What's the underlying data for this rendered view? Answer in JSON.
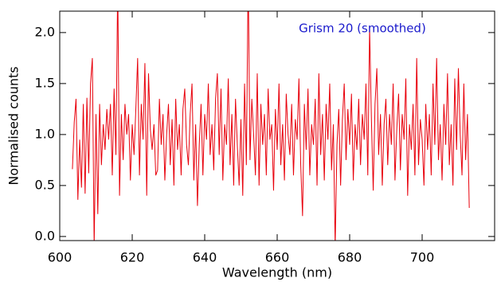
{
  "chart_data": {
    "type": "line",
    "annotation": "Grism 20 (smoothed)",
    "x_label": "Wavelength (nm)",
    "y_label": "Normalised counts",
    "xlim": [
      600,
      720
    ],
    "ylim": [
      -0.04,
      2.21
    ],
    "xticks": [
      600,
      620,
      640,
      660,
      680,
      700
    ],
    "yticks": [
      {
        "value": 0,
        "label": "0.0"
      },
      0.5,
      {
        "value": 1,
        "label": "1.0"
      },
      1.5,
      {
        "value": 2,
        "label": "2.0"
      }
    ],
    "x": [
      603.5,
      604,
      604.5,
      605,
      605.5,
      606,
      606.5,
      607,
      607.5,
      608,
      608.5,
      609,
      609.5,
      610,
      610.5,
      611,
      611.5,
      612,
      612.5,
      613,
      613.5,
      614,
      614.5,
      615,
      615.5,
      616,
      616.5,
      617,
      617.5,
      618,
      618.5,
      619,
      619.5,
      620,
      620.5,
      621,
      621.5,
      622,
      622.5,
      623,
      623.5,
      624,
      624.5,
      625,
      625.5,
      626,
      626.5,
      627,
      627.5,
      628,
      628.5,
      629,
      629.5,
      630,
      630.5,
      631,
      631.5,
      632,
      632.5,
      633,
      633.5,
      634,
      634.5,
      635,
      635.5,
      636,
      636.5,
      637,
      637.5,
      638,
      638.5,
      639,
      639.5,
      640,
      640.5,
      641,
      641.5,
      642,
      642.5,
      643,
      643.5,
      644,
      644.5,
      645,
      645.5,
      646,
      646.5,
      647,
      647.5,
      648,
      648.5,
      649,
      649.5,
      650,
      650.5,
      651,
      651.5,
      652,
      652.5,
      653,
      653.5,
      654,
      654.5,
      655,
      655.5,
      656,
      656.5,
      657,
      657.5,
      658,
      658.5,
      659,
      659.5,
      660,
      660.5,
      661,
      661.5,
      662,
      662.5,
      663,
      663.5,
      664,
      664.5,
      665,
      665.5,
      666,
      666.5,
      667,
      667.5,
      668,
      668.5,
      669,
      669.5,
      670,
      670.5,
      671,
      671.5,
      672,
      672.5,
      673,
      673.5,
      674,
      674.5,
      675,
      675.5,
      676,
      676.5,
      677,
      677.5,
      678,
      678.5,
      679,
      679.5,
      680,
      680.5,
      681,
      681.5,
      682,
      682.5,
      683,
      683.5,
      684,
      684.5,
      685,
      685.5,
      686,
      686.5,
      687,
      687.5,
      688,
      688.5,
      689,
      689.5,
      690,
      690.5,
      691,
      691.5,
      692,
      692.5,
      693,
      693.5,
      694,
      694.5,
      695,
      695.5,
      696,
      696.5,
      697,
      697.5,
      698,
      698.5,
      699,
      699.5,
      700,
      700.5,
      701,
      701.5,
      702,
      702.5,
      703,
      703.5,
      704,
      704.5,
      705,
      705.5,
      706,
      706.5,
      707,
      707.5,
      708,
      708.5,
      709,
      709.5,
      710,
      710.5,
      711,
      711.5,
      712,
      712.5,
      713
    ],
    "series": [
      {
        "color": "#e8000b",
        "values": [
          0.66,
          1.12,
          1.35,
          0.36,
          0.95,
          0.48,
          1.3,
          0.42,
          1.36,
          0.62,
          1.5,
          1.75,
          -0.1,
          1.2,
          0.22,
          1.3,
          0.7,
          1.1,
          0.85,
          1.25,
          0.95,
          1.3,
          0.6,
          1.45,
          0.8,
          2.5,
          0.4,
          1.2,
          0.75,
          1.3,
          1.0,
          1.2,
          0.55,
          1.1,
          0.8,
          1.25,
          1.75,
          0.6,
          1.3,
          0.95,
          1.7,
          0.4,
          1.6,
          1.05,
          0.85,
          1.1,
          0.6,
          0.65,
          1.35,
          0.9,
          1.2,
          0.55,
          1.0,
          1.3,
          0.7,
          1.15,
          0.5,
          1.35,
          0.85,
          1.1,
          0.6,
          1.25,
          1.45,
          0.9,
          0.7,
          1.2,
          1.5,
          0.55,
          1.1,
          0.3,
          0.9,
          1.3,
          0.6,
          1.2,
          0.95,
          1.5,
          0.8,
          1.1,
          0.65,
          1.35,
          1.6,
          0.8,
          1.45,
          0.55,
          1.1,
          0.9,
          1.55,
          0.7,
          1.2,
          0.5,
          1.35,
          0.9,
          0.5,
          1.15,
          0.4,
          1.5,
          0.7,
          2.6,
          0.75,
          1.35,
          1.0,
          0.6,
          1.6,
          0.5,
          1.3,
          0.9,
          1.2,
          0.6,
          1.45,
          0.95,
          1.1,
          0.45,
          1.25,
          0.85,
          1.5,
          0.7,
          1.1,
          0.55,
          1.4,
          1.0,
          0.8,
          1.3,
          0.6,
          1.15,
          0.95,
          1.55,
          0.7,
          0.2,
          1.3,
          0.85,
          1.45,
          0.6,
          1.1,
          0.9,
          1.35,
          0.5,
          1.6,
          0.8,
          1.2,
          0.55,
          1.3,
          0.95,
          1.5,
          0.65,
          1.1,
          -0.1,
          0.9,
          1.25,
          0.5,
          1.15,
          1.5,
          0.75,
          1.25,
          0.9,
          1.4,
          0.55,
          1.1,
          0.85,
          1.35,
          0.7,
          1.2,
          0.95,
          1.5,
          0.6,
          2.05,
          1.15,
          0.45,
          1.3,
          1.65,
          0.8,
          1.2,
          0.5,
          1.1,
          1.35,
          0.7,
          1.2,
          0.9,
          1.5,
          0.55,
          1.05,
          1.4,
          0.65,
          1.2,
          0.95,
          1.55,
          0.4,
          1.1,
          0.85,
          1.3,
          0.6,
          1.75,
          0.7,
          1.15,
          0.95,
          0.5,
          1.3,
          0.85,
          1.2,
          0.6,
          1.5,
          0.9,
          1.75,
          0.75,
          1.1,
          0.55,
          1.3,
          0.9,
          1.6,
          0.7,
          1.1,
          0.5,
          1.55,
          0.85,
          1.65,
          1.0,
          0.6,
          1.5,
          0.75,
          1.2,
          0.28
        ]
      }
    ]
  }
}
